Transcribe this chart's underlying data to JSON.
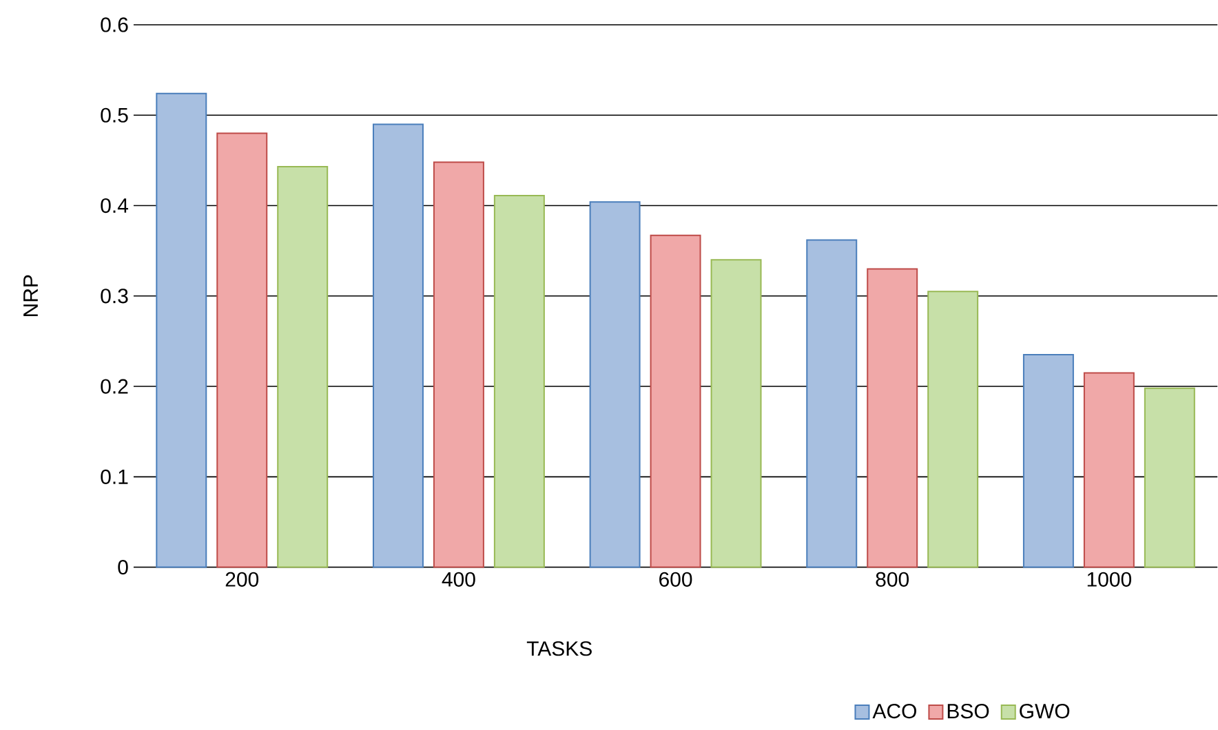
{
  "chart_data": {
    "type": "bar",
    "xlabel": "TASKS",
    "ylabel": "NRP",
    "categories": [
      "200",
      "400",
      "600",
      "800",
      "1000"
    ],
    "series": [
      {
        "name": "ACO",
        "color": "#a7bfe0",
        "values": [
          0.524,
          0.49,
          0.404,
          0.362,
          0.235
        ]
      },
      {
        "name": "BSO",
        "color": "#f0a8a8",
        "values": [
          0.48,
          0.448,
          0.367,
          0.33,
          0.215
        ]
      },
      {
        "name": "GWO",
        "color": "#c7e0a8",
        "values": [
          0.443,
          0.411,
          0.34,
          0.305,
          0.198
        ]
      }
    ],
    "ylim": [
      0,
      0.6
    ],
    "yticks": [
      0,
      0.1,
      0.2,
      0.3,
      0.4,
      0.5,
      0.6
    ],
    "grid": "y",
    "legend": "bottom right"
  }
}
